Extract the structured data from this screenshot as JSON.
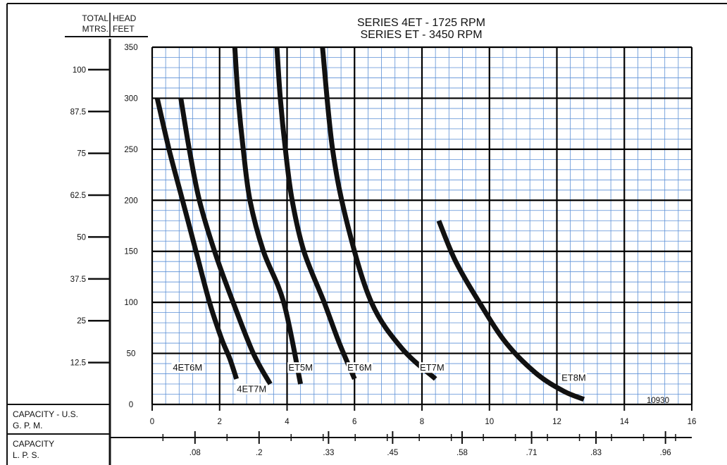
{
  "chart_data": {
    "type": "line",
    "title": [
      "SERIES  4ET - 1725 RPM",
      "SERIES  ET - 3450 RPM"
    ],
    "y_header": {
      "metric": [
        "TOTAL",
        "MTRS."
      ],
      "feet": [
        "HEAD",
        "FEET"
      ]
    },
    "x_primary_label": [
      "CAPACITY - U.S.",
      "G. P. M."
    ],
    "x_secondary_label": [
      "CAPACITY",
      "L. P. S."
    ],
    "code": "10930",
    "xlim": [
      0,
      16
    ],
    "ylim": [
      0,
      350
    ],
    "x_ticks": [
      "0",
      "2",
      "4",
      "6",
      "8",
      "10",
      "12",
      "14",
      "16"
    ],
    "y_ticks_feet": [
      "0",
      "50",
      "100",
      "150",
      "200",
      "250",
      "300",
      "350"
    ],
    "y_ticks_meters": [
      {
        "label": "12.5",
        "value": 41
      },
      {
        "label": "25",
        "value": 82
      },
      {
        "label": "37.5",
        "value": 123
      },
      {
        "label": "50",
        "value": 164
      },
      {
        "label": "62.5",
        "value": 205
      },
      {
        "label": "75",
        "value": 246
      },
      {
        "label": "87.5",
        "value": 287
      },
      {
        "label": "100",
        "value": 328
      }
    ],
    "lps_ticks": [
      {
        "label": ".08",
        "value": 1.27
      },
      {
        "label": ".2",
        "value": 3.17
      },
      {
        "label": ".33",
        "value": 5.23
      },
      {
        "label": ".45",
        "value": 7.13
      },
      {
        "label": ".58",
        "value": 9.19
      },
      {
        "label": ".71",
        "value": 11.25
      },
      {
        "label": ".83",
        "value": 13.16
      },
      {
        "label": ".96",
        "value": 15.22
      }
    ],
    "grid": true,
    "series": [
      {
        "name": "4ET6M",
        "label_at": [
          1.05,
          33
        ],
        "x": [
          0.15,
          0.5,
          0.9,
          1.3,
          1.7,
          2.05,
          2.3,
          2.5
        ],
        "y": [
          300,
          250,
          200,
          150,
          100,
          65,
          45,
          25
        ]
      },
      {
        "name": "4ET7M",
        "label_at": [
          2.95,
          12
        ],
        "x": [
          0.85,
          1.1,
          1.4,
          1.85,
          2.4,
          3.0,
          3.5
        ],
        "y": [
          300,
          250,
          200,
          150,
          100,
          50,
          20
        ]
      },
      {
        "name": "ET5M",
        "label_at": [
          4.4,
          33
        ],
        "x": [
          2.45,
          2.55,
          2.7,
          2.9,
          3.3,
          3.9,
          4.4
        ],
        "y": [
          350,
          300,
          250,
          200,
          150,
          100,
          20
        ]
      },
      {
        "name": "ET6M",
        "label_at": [
          6.15,
          33
        ],
        "x": [
          3.7,
          3.8,
          3.95,
          4.15,
          4.5,
          5.1,
          5.55,
          6.0
        ],
        "y": [
          350,
          300,
          250,
          200,
          150,
          100,
          60,
          25
        ]
      },
      {
        "name": "ET7M",
        "label_at": [
          8.3,
          33
        ],
        "x": [
          5.05,
          5.35,
          5.8,
          6.5,
          7.4,
          8.4
        ],
        "y": [
          350,
          250,
          175,
          100,
          55,
          25
        ]
      },
      {
        "name": "ET8M",
        "label_at": [
          12.5,
          23
        ],
        "x": [
          8.5,
          9.0,
          9.7,
          10.5,
          11.4,
          12.2,
          12.8
        ],
        "y": [
          180,
          140,
          100,
          60,
          30,
          13,
          5
        ]
      }
    ]
  }
}
